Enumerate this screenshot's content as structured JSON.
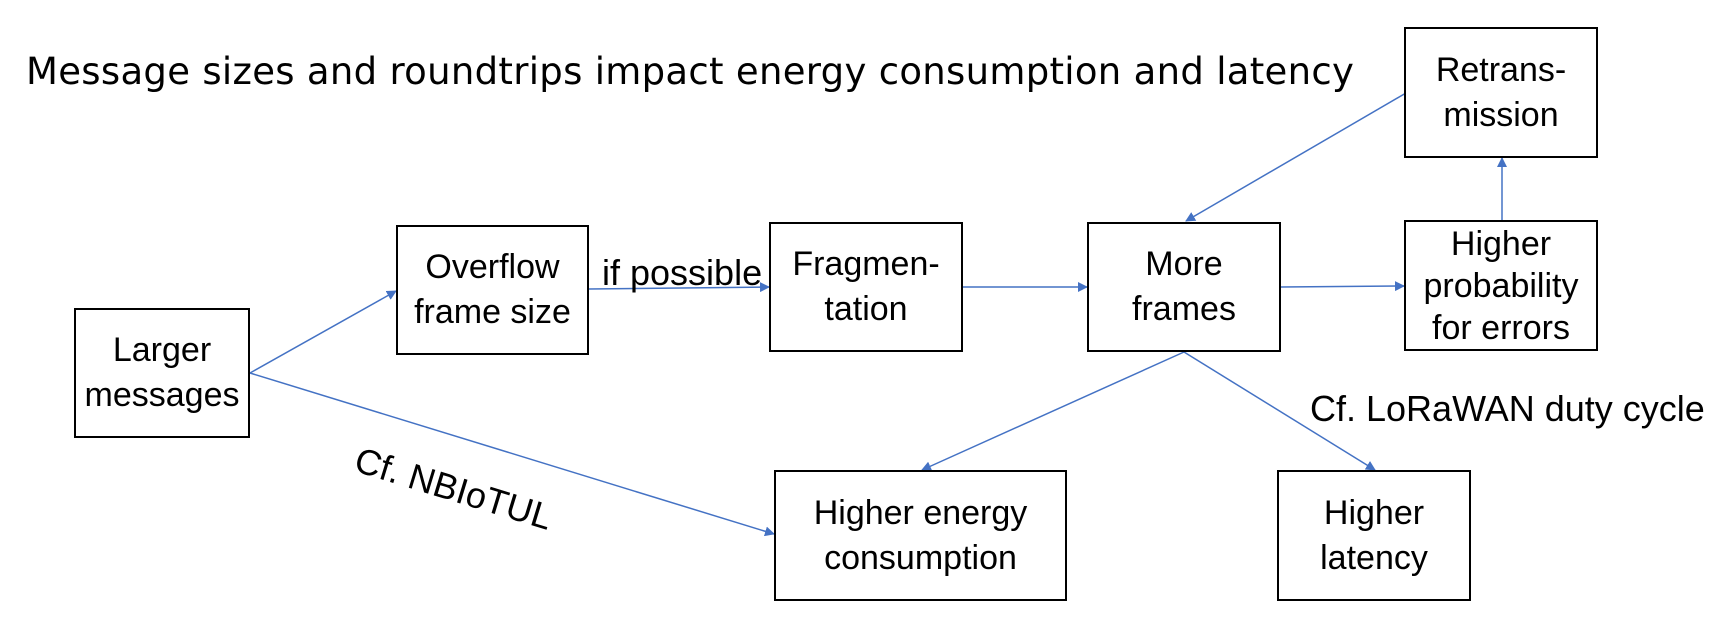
{
  "title": "Message sizes and roundtrips impact energy consumption and latency",
  "nodes": {
    "larger_messages": "Larger\nmessages",
    "overflow_frame_size": "Overflow\nframe size",
    "fragmentation": "Fragmen-\ntation",
    "more_frames": "More\nframes",
    "higher_probability_errors": "Higher\nprobability\nfor errors",
    "retransmission": "Retrans-\nmission",
    "higher_energy_consumption": "Higher energy\nconsumption",
    "higher_latency": "Higher\nlatency"
  },
  "edge_labels": {
    "if_possible": "if possible",
    "cf_nbiotul": "Cf. NBIoTUL",
    "cf_lorawan": "Cf. LoRaWAN duty cycle"
  },
  "edges": [
    {
      "from": "larger_messages",
      "to": "overflow_frame_size"
    },
    {
      "from": "larger_messages",
      "to": "higher_energy_consumption"
    },
    {
      "from": "overflow_frame_size",
      "to": "fragmentation"
    },
    {
      "from": "fragmentation",
      "to": "more_frames"
    },
    {
      "from": "more_frames",
      "to": "higher_probability_errors"
    },
    {
      "from": "higher_probability_errors",
      "to": "retransmission"
    },
    {
      "from": "retransmission",
      "to": "more_frames"
    },
    {
      "from": "more_frames",
      "to": "higher_energy_consumption"
    },
    {
      "from": "more_frames",
      "to": "higher_latency"
    }
  ],
  "colors": {
    "arrow": "#4472c4",
    "box_border": "#000000"
  }
}
